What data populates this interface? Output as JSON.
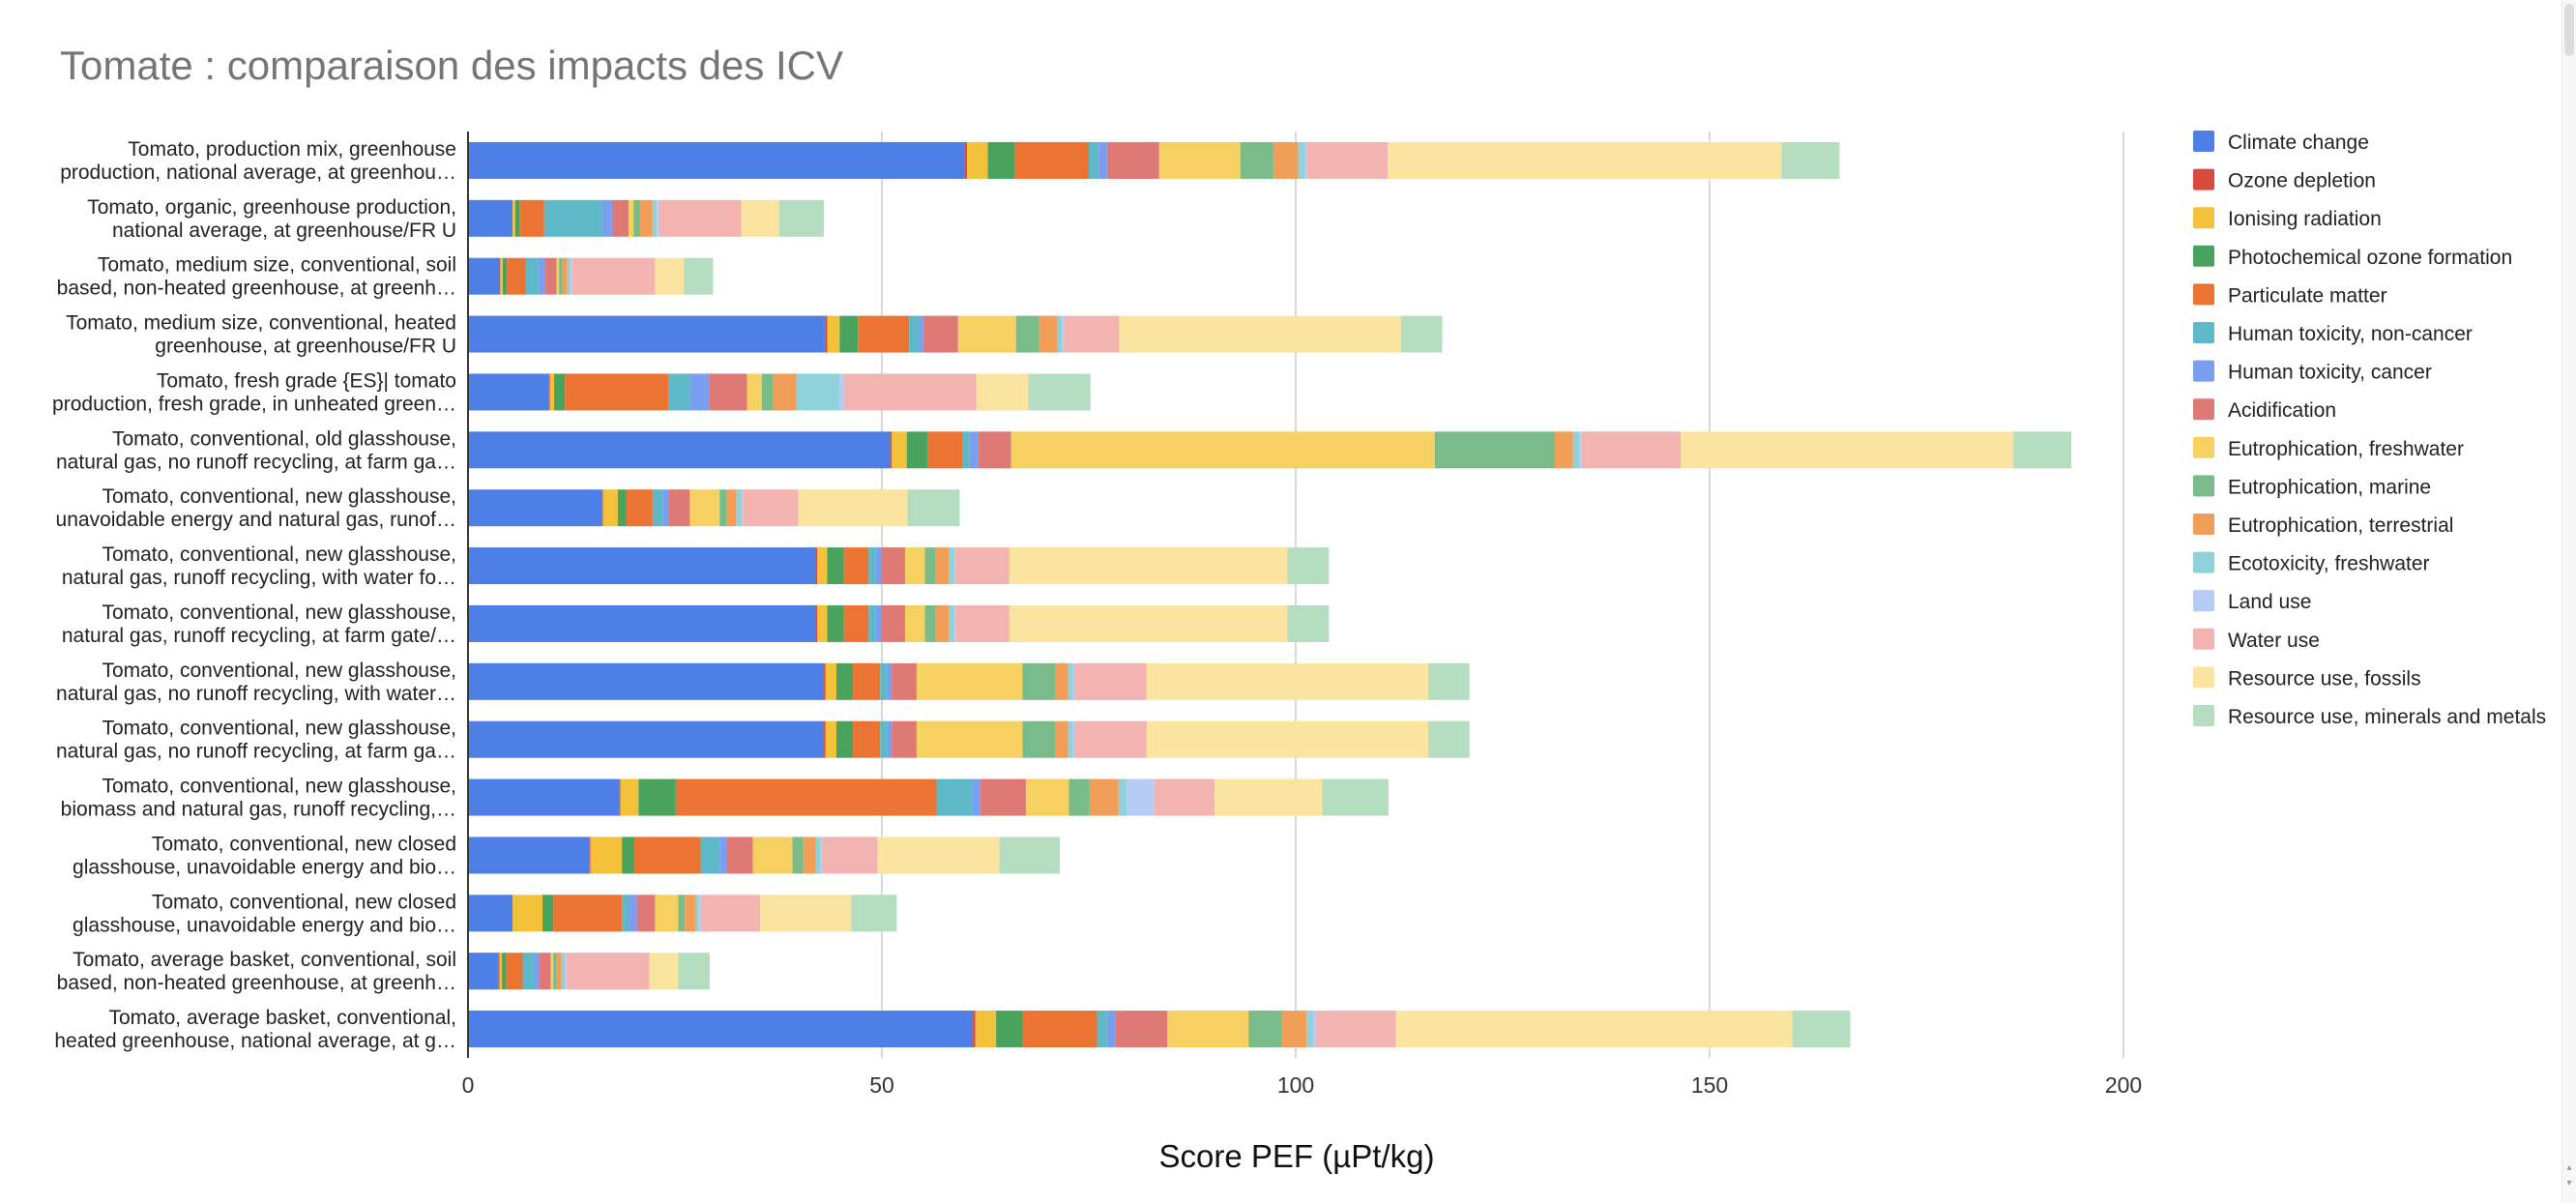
{
  "chart_data": {
    "type": "bar",
    "orientation": "horizontal",
    "stacked": true,
    "title": "Tomate : comparaison des impacts des ICV",
    "xlabel": "Score PEF (µPt/kg)",
    "ylabel": "",
    "xlim": [
      0,
      200
    ],
    "xticks": [
      0,
      50,
      100,
      150,
      200
    ],
    "grid": true,
    "legend_position": "right",
    "categories": [
      [
        "Tomato, production mix, greenhouse",
        "production, national average, at greenhou…"
      ],
      [
        "Tomato, organic, greenhouse production,",
        "national average, at greenhouse/FR U"
      ],
      [
        "Tomato, medium size, conventional, soil",
        "based, non-heated greenhouse, at greenh…"
      ],
      [
        "Tomato, medium size, conventional, heated",
        "greenhouse, at greenhouse/FR U"
      ],
      [
        "Tomato, fresh grade {ES}| tomato",
        "production, fresh grade, in unheated green…"
      ],
      [
        "Tomato, conventional, old glasshouse,",
        "natural gas, no runoff recycling, at farm ga…"
      ],
      [
        "Tomato, conventional, new glasshouse,",
        "unavoidable energy and natural gas, runof…"
      ],
      [
        "Tomato, conventional, new glasshouse,",
        "natural gas, runoff recycling, with water fo…"
      ],
      [
        "Tomato, conventional, new glasshouse,",
        "natural gas, runoff recycling, at farm gate/…"
      ],
      [
        "Tomato, conventional, new glasshouse,",
        "natural gas, no runoff recycling, with water…"
      ],
      [
        "Tomato, conventional, new glasshouse,",
        "natural gas, no runoff recycling, at farm ga…"
      ],
      [
        "Tomato, conventional, new glasshouse,",
        "biomass and natural gas, runoff recycling,…"
      ],
      [
        "Tomato, conventional, new closed",
        "glasshouse,  unavoidable energy and bio…"
      ],
      [
        "Tomato, conventional, new closed",
        "glasshouse,  unavoidable energy and bio…"
      ],
      [
        "Tomato, average basket, conventional, soil",
        "based, non-heated greenhouse, at greenh…"
      ],
      [
        "Tomato, average basket, conventional,",
        "heated greenhouse, national average, at g…"
      ]
    ],
    "series": [
      {
        "name": "Climate change",
        "color": "#4e7fe6",
        "values": [
          60,
          5.3,
          3.8,
          43.2,
          9.8,
          51,
          16.2,
          42,
          42,
          43,
          43,
          18.3,
          14.7,
          5.3,
          3.7,
          61
        ]
      },
      {
        "name": "Ozone depletion",
        "color": "#d84a3b",
        "values": [
          0.3,
          0.1,
          0.1,
          0.2,
          0.1,
          0.2,
          0.1,
          0.2,
          0.2,
          0.2,
          0.2,
          0.1,
          0.1,
          0.1,
          0.1,
          0.3
        ]
      },
      {
        "name": "Ionising radiation",
        "color": "#f3c13a",
        "values": [
          2.5,
          0.3,
          0.3,
          1.5,
          0.5,
          1.8,
          1.8,
          1.2,
          1.2,
          1.3,
          1.3,
          2.2,
          3.8,
          3.6,
          0.3,
          2.5
        ]
      },
      {
        "name": "Photochemical ozone formation",
        "color": "#4aa35d",
        "values": [
          3.2,
          0.5,
          0.5,
          2.2,
          1.3,
          2.5,
          1.0,
          2.0,
          2.0,
          2.0,
          2.0,
          4.5,
          1.5,
          1.3,
          0.5,
          3.2
        ]
      },
      {
        "name": "Particulate matter",
        "color": "#ec7432",
        "values": [
          9,
          3,
          2.3,
          6.2,
          12.5,
          4.3,
          3.2,
          3,
          3,
          3.3,
          3.3,
          31.5,
          8,
          8.3,
          2,
          9
        ]
      },
      {
        "name": "Human toxicity, non-cancer",
        "color": "#5db8c7",
        "values": [
          1.2,
          7,
          1.5,
          1.2,
          2.6,
          0.8,
          1.2,
          0.8,
          0.8,
          0.8,
          0.8,
          4.3,
          2.3,
          0.8,
          1.4,
          1.2
        ]
      },
      {
        "name": "Human toxicity, cancer",
        "color": "#7a9ff0",
        "values": [
          1,
          1.2,
          0.8,
          0.5,
          2.4,
          1,
          0.8,
          0.8,
          0.8,
          0.6,
          0.6,
          1,
          0.8,
          1,
          0.6,
          1
        ]
      },
      {
        "name": "Acidification",
        "color": "#df7976",
        "values": [
          6.3,
          2,
          1.4,
          4.2,
          4.5,
          4,
          2.5,
          2.8,
          2.8,
          3,
          3,
          5.5,
          3.2,
          2.2,
          1.4,
          6.3
        ]
      },
      {
        "name": "Eutrophication, freshwater",
        "color": "#f7d062",
        "values": [
          9.8,
          0.6,
          0.3,
          7,
          1.8,
          51.2,
          3.6,
          2.4,
          2.4,
          12.8,
          12.8,
          5.2,
          4.8,
          2.8,
          0.3,
          9.8
        ]
      },
      {
        "name": "Eutrophication, marine",
        "color": "#79bc89",
        "values": [
          4,
          0.8,
          0.4,
          2.8,
          1.3,
          14.5,
          0.8,
          1.3,
          1.3,
          4,
          4,
          2.5,
          1.3,
          0.8,
          0.4,
          4
        ]
      },
      {
        "name": "Eutrophication, terrestrial",
        "color": "#f19e59",
        "values": [
          3,
          1.5,
          0.6,
          2.2,
          2.9,
          2.2,
          1.2,
          1.6,
          1.6,
          1.5,
          1.5,
          3.5,
          1.5,
          1.3,
          0.6,
          3
        ]
      },
      {
        "name": "Ecotoxicity, freshwater",
        "color": "#8fd2db",
        "values": [
          0.8,
          0.5,
          0.4,
          0.6,
          5.2,
          0.8,
          0.6,
          0.6,
          0.6,
          0.6,
          0.6,
          1,
          0.6,
          0.4,
          0.4,
          0.8
        ]
      },
      {
        "name": "Land use",
        "color": "#b7ccf5",
        "values": [
          0.3,
          0.2,
          0.2,
          0.2,
          0.5,
          0.2,
          0.2,
          0.2,
          0.2,
          0.2,
          0.2,
          3.3,
          0.2,
          0.2,
          0.2,
          0.3
        ]
      },
      {
        "name": "Water use",
        "color": "#f2b3b1",
        "values": [
          9.7,
          10,
          10,
          6.7,
          16,
          12,
          6.7,
          6.5,
          6.5,
          8.7,
          8.7,
          7.3,
          6.7,
          7.2,
          10,
          9.7
        ]
      },
      {
        "name": "Resource use, fossils",
        "color": "#fbe3a0",
        "values": [
          47.6,
          4.6,
          3.5,
          34,
          6.3,
          40.2,
          13.2,
          33.6,
          33.6,
          34,
          34,
          13,
          14.7,
          11,
          3.5,
          47.9
        ]
      },
      {
        "name": "Resource use, minerals and metals",
        "color": "#b5ddc0",
        "values": [
          7,
          5.4,
          3.5,
          5,
          7.5,
          7,
          6.3,
          5,
          5,
          5,
          5,
          8,
          7.3,
          5.5,
          3.8,
          7
        ]
      }
    ]
  }
}
